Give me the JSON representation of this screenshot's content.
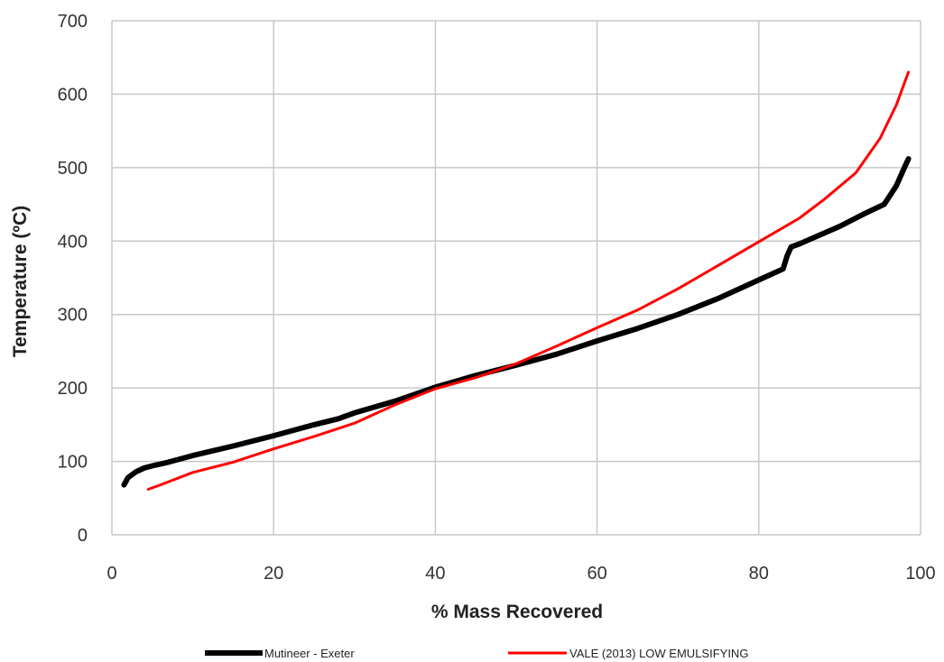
{
  "chart_data": {
    "type": "line",
    "title": "",
    "xlabel": "% Mass Recovered",
    "ylabel": "Temperature (ºC)",
    "xlim": [
      0,
      100
    ],
    "ylim": [
      0,
      700
    ],
    "x_ticks": [
      0,
      20,
      40,
      60,
      80,
      100
    ],
    "y_ticks": [
      0,
      100,
      200,
      300,
      400,
      500,
      600,
      700
    ],
    "grid": true,
    "legend_position": "bottom",
    "series": [
      {
        "name": "Mutineer - Exeter",
        "color": "#000000",
        "points": [
          [
            1.5,
            68
          ],
          [
            2,
            78
          ],
          [
            3,
            86
          ],
          [
            4,
            91
          ],
          [
            5,
            94
          ],
          [
            7,
            99
          ],
          [
            10,
            108
          ],
          [
            15,
            121
          ],
          [
            20,
            135
          ],
          [
            25,
            150
          ],
          [
            28,
            158
          ],
          [
            30,
            166
          ],
          [
            35,
            182
          ],
          [
            40,
            201
          ],
          [
            45,
            217
          ],
          [
            50,
            231
          ],
          [
            55,
            246
          ],
          [
            60,
            264
          ],
          [
            65,
            281
          ],
          [
            70,
            300
          ],
          [
            75,
            322
          ],
          [
            80,
            347
          ],
          [
            83,
            362
          ],
          [
            83.5,
            380
          ],
          [
            84,
            392
          ],
          [
            85,
            396
          ],
          [
            90,
            420
          ],
          [
            93,
            437
          ],
          [
            95.5,
            450
          ],
          [
            97,
            475
          ],
          [
            98,
            500
          ],
          [
            98.5,
            512
          ]
        ]
      },
      {
        "name": "VALE (2013) LOW EMULSIFYING",
        "color": "#ff0000",
        "points": [
          [
            4.5,
            62
          ],
          [
            6,
            68
          ],
          [
            10,
            85
          ],
          [
            15,
            99
          ],
          [
            20,
            117
          ],
          [
            25,
            134
          ],
          [
            30,
            152
          ],
          [
            35,
            177
          ],
          [
            40,
            199
          ],
          [
            45,
            214
          ],
          [
            50,
            233
          ],
          [
            55,
            257
          ],
          [
            60,
            282
          ],
          [
            65,
            306
          ],
          [
            70,
            335
          ],
          [
            75,
            367
          ],
          [
            80,
            399
          ],
          [
            85,
            431
          ],
          [
            88,
            456
          ],
          [
            92,
            493
          ],
          [
            95,
            540
          ],
          [
            97,
            585
          ],
          [
            98.5,
            630
          ]
        ]
      }
    ]
  }
}
